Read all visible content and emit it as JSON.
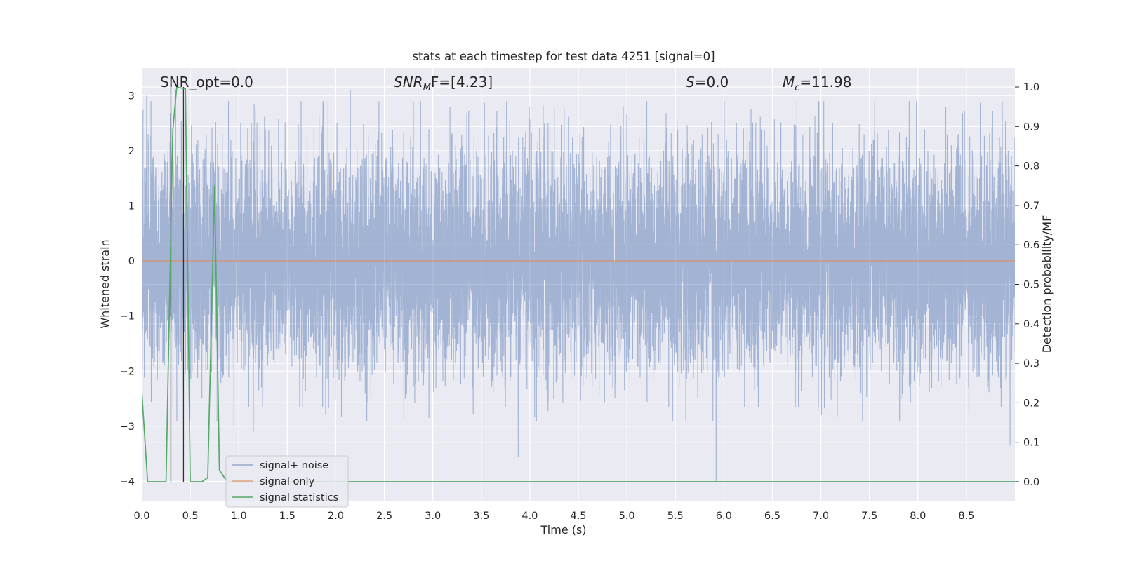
{
  "chart_data": {
    "type": "line",
    "title": "stats at each timestep for test data 4251 [signal=0]",
    "xlabel": "Time (s)",
    "ylabel": "Whitened strain",
    "ylabel_right": "Detection probability/MF",
    "xlim": [
      0.0,
      9.0
    ],
    "ylim": [
      -4.35,
      3.5
    ],
    "ylim_right": [
      -0.048,
      1.048
    ],
    "x_ticks": [
      "0.0",
      "0.5",
      "1.0",
      "1.5",
      "2.0",
      "2.5",
      "3.0",
      "3.5",
      "4.0",
      "4.5",
      "5.0",
      "5.5",
      "6.0",
      "6.5",
      "7.0",
      "7.5",
      "8.0",
      "8.5"
    ],
    "y_ticks": [
      "3",
      "2",
      "1",
      "0",
      "−1",
      "−2",
      "−3",
      "−4"
    ],
    "y_ticks_right": [
      "1.0",
      "0.9",
      "0.8",
      "0.7",
      "0.6",
      "0.5",
      "0.4",
      "0.3",
      "0.2",
      "0.1",
      "0.0"
    ],
    "grid": true,
    "legend_position": "lower-left",
    "annotations": {
      "snr_opt": "SNR_opt=0.0",
      "snr_mf_main": "SNR",
      "snr_mf_sub": "M",
      "snr_mf_tail": "F=[4.23]",
      "s_var": "S",
      "s_val": "=0.0",
      "mc_var": "M",
      "mc_sub": "c",
      "mc_val": "=11.98"
    },
    "colors": {
      "noise": "#4c72b0",
      "signal": "#dd8452",
      "stats": "#55a868",
      "background": "#eaeaf2"
    },
    "series": [
      {
        "name": "signal+ noise",
        "axis": "left",
        "sample_rate_hz": 1024,
        "amplitude_std": 1.0,
        "notable_peaks": [
          {
            "x": 0.05,
            "y": 3.0
          },
          {
            "x": 0.35,
            "y": 3.1
          },
          {
            "x": 0.95,
            "y": -3.0
          },
          {
            "x": 1.15,
            "y": -3.1
          },
          {
            "x": 2.15,
            "y": 3.1
          },
          {
            "x": 2.96,
            "y": -2.85
          },
          {
            "x": 3.88,
            "y": -3.55
          },
          {
            "x": 5.92,
            "y": -4.0
          },
          {
            "x": 8.95,
            "y": -3.35
          }
        ]
      },
      {
        "name": "signal only",
        "axis": "left",
        "x": [
          0.0,
          9.0
        ],
        "y": [
          0.0,
          0.0
        ]
      },
      {
        "name": "signal statistics",
        "axis": "right",
        "x": [
          0.0,
          0.06,
          0.25,
          0.32,
          0.36,
          0.45,
          0.5,
          0.62,
          0.68,
          0.75,
          0.8,
          0.88,
          9.0
        ],
        "y": [
          0.23,
          0.0,
          0.0,
          0.89,
          1.0,
          0.995,
          0.0,
          0.0,
          0.01,
          0.75,
          0.03,
          0.0,
          0.0
        ]
      }
    ],
    "vertical_markers_x": [
      0.3,
      0.43
    ],
    "legend": [
      "signal+ noise",
      "signal only",
      "signal statistics"
    ]
  }
}
